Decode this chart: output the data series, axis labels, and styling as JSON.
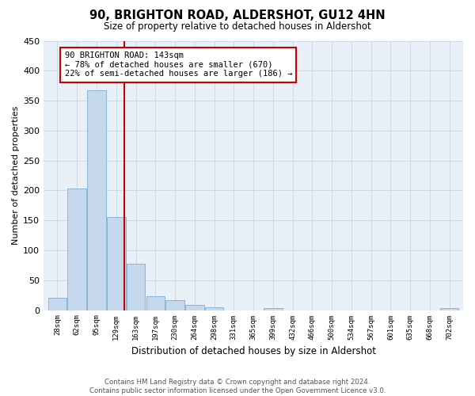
{
  "title": "90, BRIGHTON ROAD, ALDERSHOT, GU12 4HN",
  "subtitle": "Size of property relative to detached houses in Aldershot",
  "xlabel": "Distribution of detached houses by size in Aldershot",
  "ylabel": "Number of detached properties",
  "bin_labels": [
    "28sqm",
    "62sqm",
    "95sqm",
    "129sqm",
    "163sqm",
    "197sqm",
    "230sqm",
    "264sqm",
    "298sqm",
    "331sqm",
    "365sqm",
    "399sqm",
    "432sqm",
    "466sqm",
    "500sqm",
    "534sqm",
    "567sqm",
    "601sqm",
    "635sqm",
    "668sqm",
    "702sqm"
  ],
  "bar_heights": [
    20,
    203,
    367,
    156,
    78,
    23,
    16,
    9,
    5,
    0,
    0,
    4,
    0,
    0,
    0,
    0,
    0,
    0,
    0,
    0,
    4
  ],
  "bar_color": "#c5d8ed",
  "bar_edge_color": "#7bafd4",
  "grid_color": "#d0d8e8",
  "background_color": "#eaf0f8",
  "vline_color": "#cc0000",
  "vline_x_index": 3.43,
  "ylim": [
    0,
    450
  ],
  "yticks": [
    0,
    50,
    100,
    150,
    200,
    250,
    300,
    350,
    400,
    450
  ],
  "annotation_title": "90 BRIGHTON ROAD: 143sqm",
  "annotation_line1": "← 78% of detached houses are smaller (670)",
  "annotation_line2": "22% of semi-detached houses are larger (186) →",
  "annotation_box_color": "#ffffff",
  "annotation_box_edge": "#cc0000",
  "footer_line1": "Contains HM Land Registry data © Crown copyright and database right 2024.",
  "footer_line2": "Contains public sector information licensed under the Open Government Licence v3.0."
}
